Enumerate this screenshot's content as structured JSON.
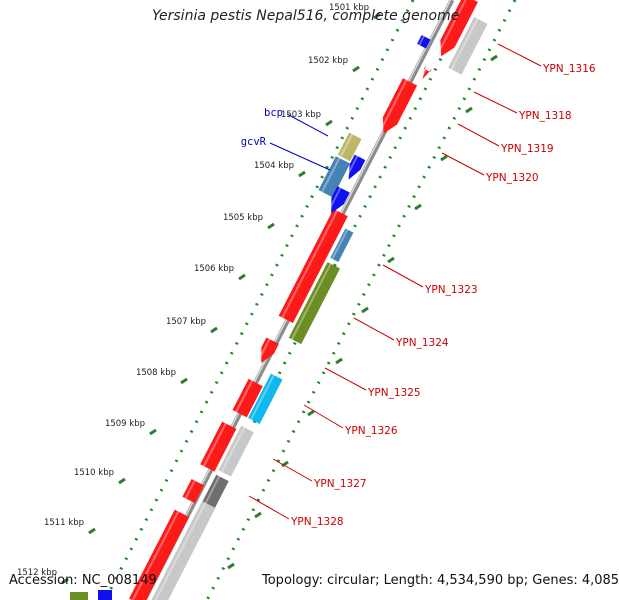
{
  "title": "Yersinia pestis Nepal516, complete genome",
  "footer": {
    "accession": "Accession: NC_008149",
    "summary": "Topology: circular; Length: 4,534,590 bp; Genes: 4,085"
  },
  "colors": {
    "background": "#ffffff",
    "backbone": "#8c8c8c",
    "tick_major": "#2e7d32",
    "tick_minor": "#1b8a1b",
    "cds_red": "#ff1a1a",
    "cds_gray": "#c8c8c8",
    "cds_dark_gray": "#6e6e6e",
    "cds_olive": "#6b8e23",
    "cds_steel": "#4682b4",
    "cds_khaki": "#bdb76b",
    "cds_blue": "#1010ee",
    "cds_cyan": "#10b8f0",
    "gene_label": "#cc0000",
    "named_gene_label": "#0000cc"
  },
  "scale_labels": [
    "1501 kbp",
    "1502 kbp",
    "1503 kbp",
    "1504 kbp",
    "1505 kbp",
    "1506 kbp",
    "1507 kbp",
    "1508 kbp",
    "1509 kbp",
    "1510 kbp",
    "1511 kbp",
    "1512 kbp"
  ],
  "named_genes": [
    {
      "label": "bcp"
    },
    {
      "label": "gcvR"
    }
  ],
  "gene_labels": [
    "YPN_1316",
    "YPN_1318",
    "YPN_1319",
    "YPN_1320",
    "YPN_1323",
    "YPN_1324",
    "YPN_1325",
    "YPN_1326",
    "YPN_1327",
    "YPN_1328"
  ]
}
